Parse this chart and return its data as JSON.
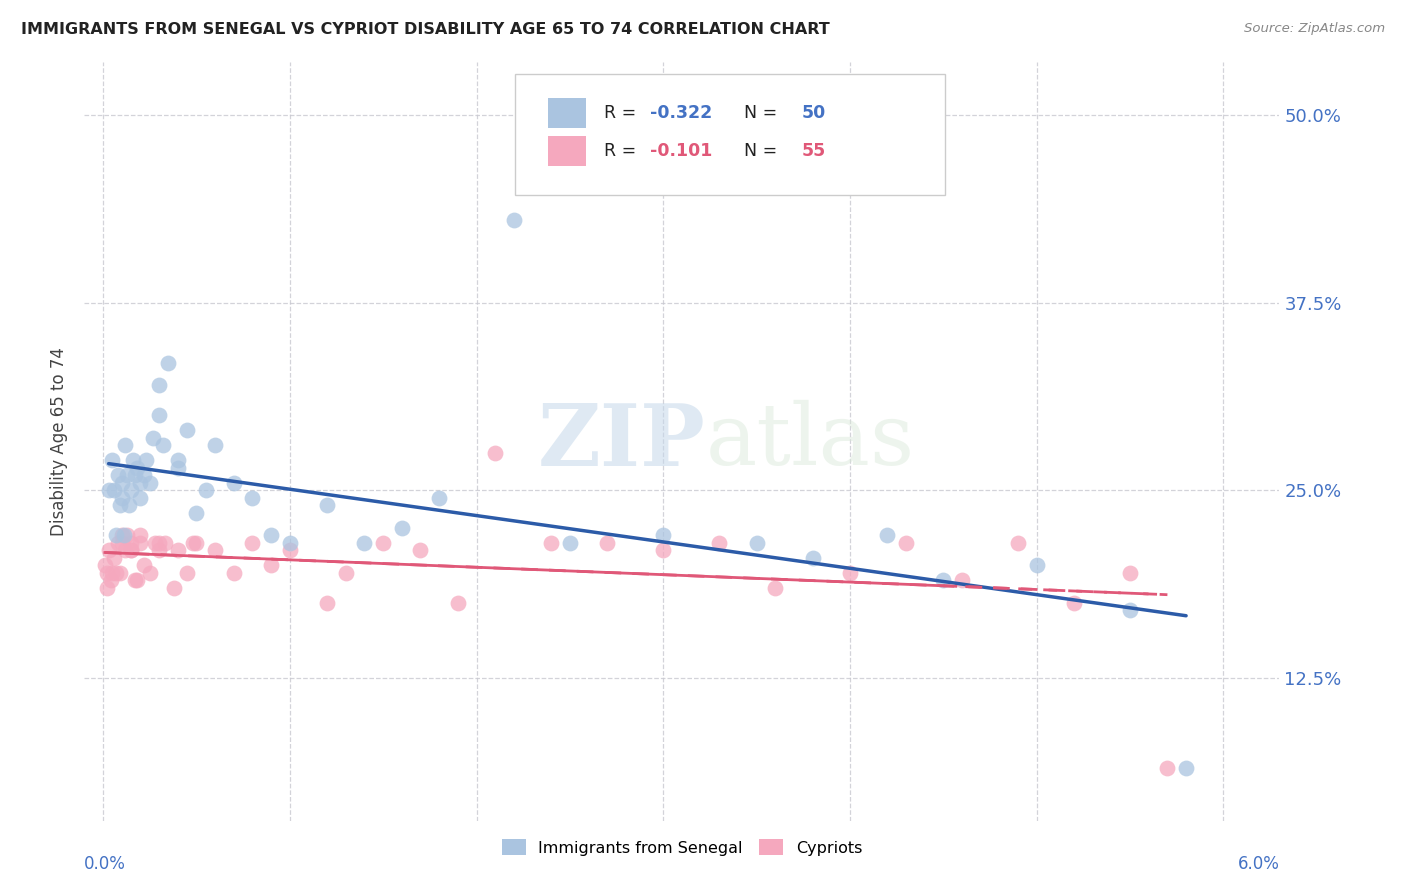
{
  "title": "IMMIGRANTS FROM SENEGAL VS CYPRIOT DISABILITY AGE 65 TO 74 CORRELATION CHART",
  "source": "Source: ZipAtlas.com",
  "ylabel": "Disability Age 65 to 74",
  "y_ticks_right": [
    0.125,
    0.25,
    0.375,
    0.5
  ],
  "y_ticklabels_right": [
    "12.5%",
    "25.0%",
    "37.5%",
    "50.0%"
  ],
  "legend_label1": "Immigrants from Senegal",
  "legend_label2": "Cypriots",
  "R1": -0.322,
  "N1": 50,
  "R2": -0.101,
  "N2": 55,
  "color_blue": "#aac4e0",
  "color_pink": "#f5a8be",
  "line_color_blue": "#2c5ba8",
  "line_color_pink": "#e05878",
  "watermark": "ZIPatlas",
  "senegal_x": [
    0.0003,
    0.0005,
    0.0006,
    0.0007,
    0.0008,
    0.0009,
    0.001,
    0.001,
    0.0011,
    0.0012,
    0.0013,
    0.0014,
    0.0015,
    0.0016,
    0.0017,
    0.0018,
    0.002,
    0.002,
    0.0022,
    0.0023,
    0.0025,
    0.0027,
    0.003,
    0.003,
    0.0032,
    0.0035,
    0.004,
    0.004,
    0.0045,
    0.005,
    0.0055,
    0.006,
    0.007,
    0.008,
    0.009,
    0.01,
    0.012,
    0.014,
    0.016,
    0.018,
    0.022,
    0.025,
    0.03,
    0.035,
    0.038,
    0.042,
    0.045,
    0.05,
    0.055,
    0.058
  ],
  "senegal_y": [
    0.25,
    0.27,
    0.25,
    0.22,
    0.26,
    0.24,
    0.255,
    0.245,
    0.22,
    0.28,
    0.26,
    0.24,
    0.25,
    0.27,
    0.26,
    0.265,
    0.255,
    0.245,
    0.26,
    0.27,
    0.255,
    0.285,
    0.3,
    0.32,
    0.28,
    0.335,
    0.27,
    0.265,
    0.29,
    0.235,
    0.25,
    0.28,
    0.255,
    0.245,
    0.22,
    0.215,
    0.24,
    0.215,
    0.225,
    0.245,
    0.43,
    0.215,
    0.22,
    0.215,
    0.205,
    0.22,
    0.19,
    0.2,
    0.17,
    0.065
  ],
  "cypriot_x": [
    0.0001,
    0.0002,
    0.0002,
    0.0003,
    0.0004,
    0.0005,
    0.0006,
    0.0007,
    0.0008,
    0.0009,
    0.001,
    0.001,
    0.0012,
    0.0013,
    0.0015,
    0.0015,
    0.0017,
    0.002,
    0.002,
    0.0022,
    0.0025,
    0.003,
    0.003,
    0.0033,
    0.004,
    0.0045,
    0.005,
    0.006,
    0.007,
    0.008,
    0.009,
    0.01,
    0.012,
    0.013,
    0.015,
    0.017,
    0.019,
    0.021,
    0.024,
    0.027,
    0.03,
    0.033,
    0.036,
    0.04,
    0.043,
    0.046,
    0.049,
    0.052,
    0.055,
    0.057,
    0.0015,
    0.0018,
    0.0028,
    0.0038,
    0.0048
  ],
  "cypriot_y": [
    0.2,
    0.185,
    0.195,
    0.21,
    0.19,
    0.195,
    0.205,
    0.195,
    0.215,
    0.195,
    0.215,
    0.22,
    0.21,
    0.22,
    0.21,
    0.215,
    0.19,
    0.22,
    0.215,
    0.2,
    0.195,
    0.21,
    0.215,
    0.215,
    0.21,
    0.195,
    0.215,
    0.21,
    0.195,
    0.215,
    0.2,
    0.21,
    0.175,
    0.195,
    0.215,
    0.21,
    0.175,
    0.275,
    0.215,
    0.215,
    0.21,
    0.215,
    0.185,
    0.195,
    0.215,
    0.19,
    0.215,
    0.175,
    0.195,
    0.065,
    0.21,
    0.19,
    0.215,
    0.185,
    0.215
  ]
}
